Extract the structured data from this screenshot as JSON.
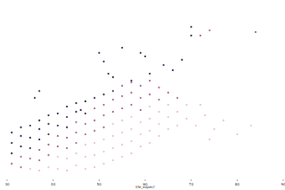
{
  "chart_data": {
    "type": "scatter",
    "x_label": "life_expect",
    "xlim": [
      30,
      90
    ],
    "xticks": [
      30,
      40,
      50,
      60,
      70,
      80,
      90
    ],
    "ylim": [
      0,
      100
    ],
    "tick_labels": "x",
    "grid": false,
    "marker": "circle",
    "x": [
      31,
      31,
      31,
      31,
      33,
      33,
      33,
      33,
      33,
      35,
      35,
      35,
      35,
      35,
      37,
      37,
      37,
      37,
      37,
      37,
      39,
      39,
      39,
      39,
      39,
      39,
      41,
      41,
      41,
      41,
      41,
      41,
      43,
      43,
      43,
      43,
      43,
      43,
      43,
      45,
      45,
      45,
      45,
      45,
      45,
      45,
      47,
      47,
      47,
      47,
      47,
      47,
      47,
      49,
      49,
      49,
      49,
      49,
      49,
      49,
      51,
      51,
      51,
      51,
      51,
      51,
      51,
      53,
      53,
      53,
      53,
      53,
      53,
      53,
      55,
      55,
      55,
      55,
      55,
      55,
      55,
      57,
      57,
      57,
      57,
      57,
      57,
      57,
      59,
      59,
      59,
      59,
      59,
      59,
      61,
      61,
      61,
      61,
      61,
      61,
      63,
      63,
      63,
      63,
      63,
      65,
      65,
      65,
      65,
      67,
      67,
      67,
      69,
      69,
      71,
      73,
      75,
      77,
      80,
      83,
      72,
      74,
      36,
      37,
      51,
      50,
      52,
      53,
      55,
      57,
      59,
      60,
      61,
      64,
      66,
      68,
      70,
      70,
      72,
      74,
      84,
      46
    ],
    "values": [
      8,
      14,
      20,
      26,
      6,
      12,
      18,
      24,
      29,
      5,
      11,
      17,
      23,
      30,
      4,
      10,
      16,
      22,
      28,
      33,
      6,
      13,
      19,
      25,
      31,
      36,
      5,
      12,
      18,
      24,
      30,
      37,
      4,
      11,
      17,
      23,
      29,
      35,
      41,
      7,
      14,
      20,
      26,
      32,
      38,
      43,
      5,
      12,
      19,
      25,
      31,
      37,
      44,
      6,
      13,
      20,
      27,
      33,
      40,
      46,
      8,
      15,
      22,
      29,
      36,
      42,
      48,
      10,
      17,
      24,
      31,
      38,
      45,
      50,
      12,
      19,
      26,
      33,
      40,
      47,
      53,
      14,
      21,
      28,
      35,
      42,
      49,
      55,
      18,
      25,
      32,
      39,
      46,
      53,
      20,
      27,
      34,
      41,
      48,
      56,
      24,
      31,
      38,
      45,
      52,
      28,
      35,
      42,
      49,
      30,
      38,
      46,
      34,
      42,
      30,
      36,
      28,
      33,
      25,
      30,
      42,
      22,
      46,
      50,
      67,
      72,
      60,
      58,
      75,
      56,
      72,
      70,
      60,
      65,
      62,
      68,
      87,
      82,
      82,
      85,
      84,
      39
    ],
    "colors": [
      "#a8668f",
      "#3a2953",
      "#3a2953",
      "#3a2953",
      "#a8668f",
      "#a8668f",
      "#3a2953",
      "#3a2953",
      "#3a2953",
      "#e8c3d0",
      "#a8668f",
      "#3a2953",
      "#3a2953",
      "#3a2953",
      "#e8c3d0",
      "#a8668f",
      "#a8668f",
      "#3a2953",
      "#3a2953",
      "#3a2953",
      "#e8c3d0",
      "#a8668f",
      "#a8668f",
      "#3a2953",
      "#3a2953",
      "#3a2953",
      "#e8c3d0",
      "#e8c3d0",
      "#a8668f",
      "#a8668f",
      "#3a2953",
      "#3a2953",
      "#e8c3d0",
      "#e8c3d0",
      "#a8668f",
      "#a8668f",
      "#3a2953",
      "#3a2953",
      "#3a2953",
      "#e8c3d0",
      "#e8c3d0",
      "#a8668f",
      "#a8668f",
      "#a8668f",
      "#3a2953",
      "#3a2953",
      "#e8c3d0",
      "#e8c3d0",
      "#e8c3d0",
      "#a8668f",
      "#a8668f",
      "#3a2953",
      "#3a2953",
      "#e8c3d0",
      "#e8c3d0",
      "#e8c3d0",
      "#a8668f",
      "#a8668f",
      "#a8668f",
      "#3a2953",
      "#e8c3d0",
      "#e8c3d0",
      "#e8c3d0",
      "#a8668f",
      "#a8668f",
      "#a8668f",
      "#3a2953",
      "#e8c3d0",
      "#e8c3d0",
      "#e8c3d0",
      "#e8c3d0",
      "#a8668f",
      "#a8668f",
      "#3a2953",
      "#e8c3d0",
      "#e8c3d0",
      "#e8c3d0",
      "#e8c3d0",
      "#a8668f",
      "#a8668f",
      "#a8668f",
      "#e8c3d0",
      "#e8c3d0",
      "#e8c3d0",
      "#e8c3d0",
      "#a8668f",
      "#a8668f",
      "#a8668f",
      "#e8c3d0",
      "#e8c3d0",
      "#e8c3d0",
      "#a8668f",
      "#a8668f",
      "#a8668f",
      "#e8c3d0",
      "#e8c3d0",
      "#e8c3d0",
      "#e8c3d0",
      "#a8668f",
      "#a8668f",
      "#e8c3d0",
      "#e8c3d0",
      "#e8c3d0",
      "#a8668f",
      "#a8668f",
      "#e8c3d0",
      "#e8c3d0",
      "#e8c3d0",
      "#a8668f",
      "#e8c3d0",
      "#e8c3d0",
      "#a8668f",
      "#e8c3d0",
      "#e8c3d0",
      "#e8c3d0",
      "#e8c3d0",
      "#e8c3d0",
      "#e8c3d0",
      "#e8c3d0",
      "#e8c3d0",
      "#e8c3d0",
      "#e8c3d0",
      "#3a2953",
      "#3a2953",
      "#3a2953",
      "#3a2953",
      "#3a2953",
      "#3a2953",
      "#3a2953",
      "#3a2953",
      "#3a2953",
      "#3a2953",
      "#3a2953",
      "#3a2953",
      "#3a2953",
      "#3a2953",
      "#3a2953",
      "#3a2953",
      "#a8668f",
      "#a8668f",
      "#a8668f",
      "#3a2953"
    ]
  }
}
